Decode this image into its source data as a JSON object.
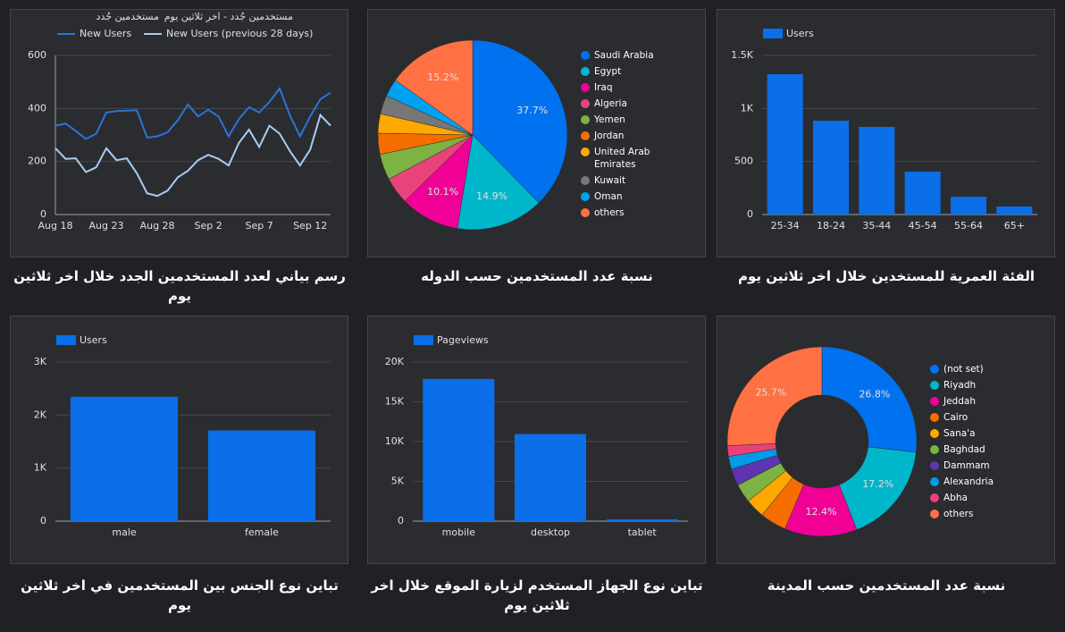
{
  "chart_data": [
    {
      "type": "line",
      "title": "رسم بياني لعدد المستخدمين الجدد خلال اخر ثلاثين يوم",
      "legend_headers": [
        "مستخدمين جُدد",
        "مستخدمين جُدد - اخر ثلاثين يوم"
      ],
      "categories": [
        "Aug 18",
        null,
        null,
        null,
        null,
        "Aug 23",
        null,
        null,
        null,
        null,
        "Aug 28",
        null,
        null,
        null,
        null,
        "Sep 2",
        null,
        null,
        null,
        null,
        "Sep 7",
        null,
        null,
        null,
        null,
        "Sep 12",
        null,
        null
      ],
      "series": [
        {
          "name": "New Users",
          "color": "#2b74d9",
          "values": [
            335,
            343,
            315,
            285,
            305,
            385,
            390,
            392,
            393,
            290,
            295,
            310,
            355,
            415,
            370,
            395,
            370,
            295,
            360,
            405,
            385,
            425,
            475,
            375,
            295,
            370,
            435,
            460
          ]
        },
        {
          "name": "New Users (previous 28 days)",
          "color": "#a8cdf2",
          "values": [
            250,
            210,
            212,
            160,
            178,
            250,
            205,
            212,
            155,
            80,
            70,
            90,
            140,
            165,
            205,
            225,
            210,
            185,
            270,
            320,
            255,
            335,
            305,
            240,
            185,
            245,
            375,
            335
          ]
        }
      ],
      "ylim": [
        0,
        600
      ],
      "yticks": [
        0,
        200,
        400,
        600
      ],
      "grid": true
    },
    {
      "type": "pie",
      "title": "نسبة عدد المستخدمين حسب الدوله",
      "categories": [
        "Saudi Arabia",
        "Egypt",
        "Iraq",
        "Algeria",
        "Yemen",
        "Jordan",
        "United Arab Emirates",
        "Kuwait",
        "Oman",
        "others"
      ],
      "values": [
        37.7,
        14.9,
        10.1,
        4.6,
        4.4,
        3.6,
        3.3,
        3.2,
        3.0,
        15.2
      ],
      "value_labels": [
        "37.7%",
        "14.9%",
        "10.1%",
        null,
        null,
        null,
        null,
        null,
        null,
        "15.2%"
      ],
      "colors": [
        "#0072f0",
        "#00b6cb",
        "#f10096",
        "#e8437a",
        "#7cb342",
        "#f66d00",
        "#ffa800",
        "#777777",
        "#00a1f0",
        "#ff7043"
      ]
    },
    {
      "type": "bar",
      "title": "الفئة العمرية للمستخدين خلال اخر ثلاثين يوم",
      "categories": [
        "25-34",
        "18-24",
        "35-44",
        "45-54",
        "55-64",
        "65+"
      ],
      "series": [
        {
          "name": "Users",
          "color": "#0a6fe8",
          "values": [
            1323,
            885,
            826,
            404,
            168,
            76
          ]
        }
      ],
      "ylim": [
        0,
        1500
      ],
      "yticks": [
        0,
        500,
        {
          "value": 1000,
          "label": "1K"
        },
        {
          "value": 1500,
          "label": "1.5K"
        }
      ],
      "grid": true
    },
    {
      "type": "bar",
      "title": "تباين نوع الجنس بين المستخدمين في اخر ثلاثين يوم",
      "categories": [
        "male",
        "female"
      ],
      "series": [
        {
          "name": "Users",
          "color": "#0a6fe8",
          "values": [
            2346,
            1709
          ]
        }
      ],
      "ylim": [
        0,
        3000
      ],
      "yticks": [
        0,
        {
          "value": 1000,
          "label": "1K"
        },
        {
          "value": 2000,
          "label": "2K"
        },
        {
          "value": 3000,
          "label": "3K"
        }
      ],
      "grid": true
    },
    {
      "type": "bar",
      "title": "تباين نوع الجهاز المستخدم لزيارة الموقع خلال اخر ثلاثين يوم",
      "categories": [
        "mobile",
        "desktop",
        "tablet"
      ],
      "series": [
        {
          "name": "Pageviews",
          "color": "#0a6fe8",
          "values": [
            17877,
            10950,
            220
          ]
        }
      ],
      "ylim": [
        0,
        20000
      ],
      "yticks": [
        0,
        {
          "value": 5000,
          "label": "5K"
        },
        {
          "value": 10000,
          "label": "10K"
        },
        {
          "value": 15000,
          "label": "15K"
        },
        {
          "value": 20000,
          "label": "20K"
        }
      ],
      "grid": true
    },
    {
      "type": "donut",
      "title": "نسبة عدد المستخدمين حسب المدينة",
      "categories": [
        "(not set)",
        "Riyadh",
        "Jeddah",
        "Cairo",
        "Sana'a",
        "Baghdad",
        "Dammam",
        "Alexandria",
        "Abha",
        "others"
      ],
      "values": [
        26.8,
        17.2,
        12.4,
        4.5,
        3.3,
        3.2,
        2.9,
        2.2,
        1.8,
        25.7
      ],
      "value_labels": [
        "26.8%",
        "17.2%",
        "12.4%",
        null,
        null,
        null,
        null,
        null,
        null,
        "25.7%"
      ],
      "colors": [
        "#0072f0",
        "#00b6cb",
        "#f10096",
        "#f66d00",
        "#ffa800",
        "#7cb342",
        "#5e35b1",
        "#039be5",
        "#ec407a",
        "#ff7043"
      ]
    }
  ]
}
